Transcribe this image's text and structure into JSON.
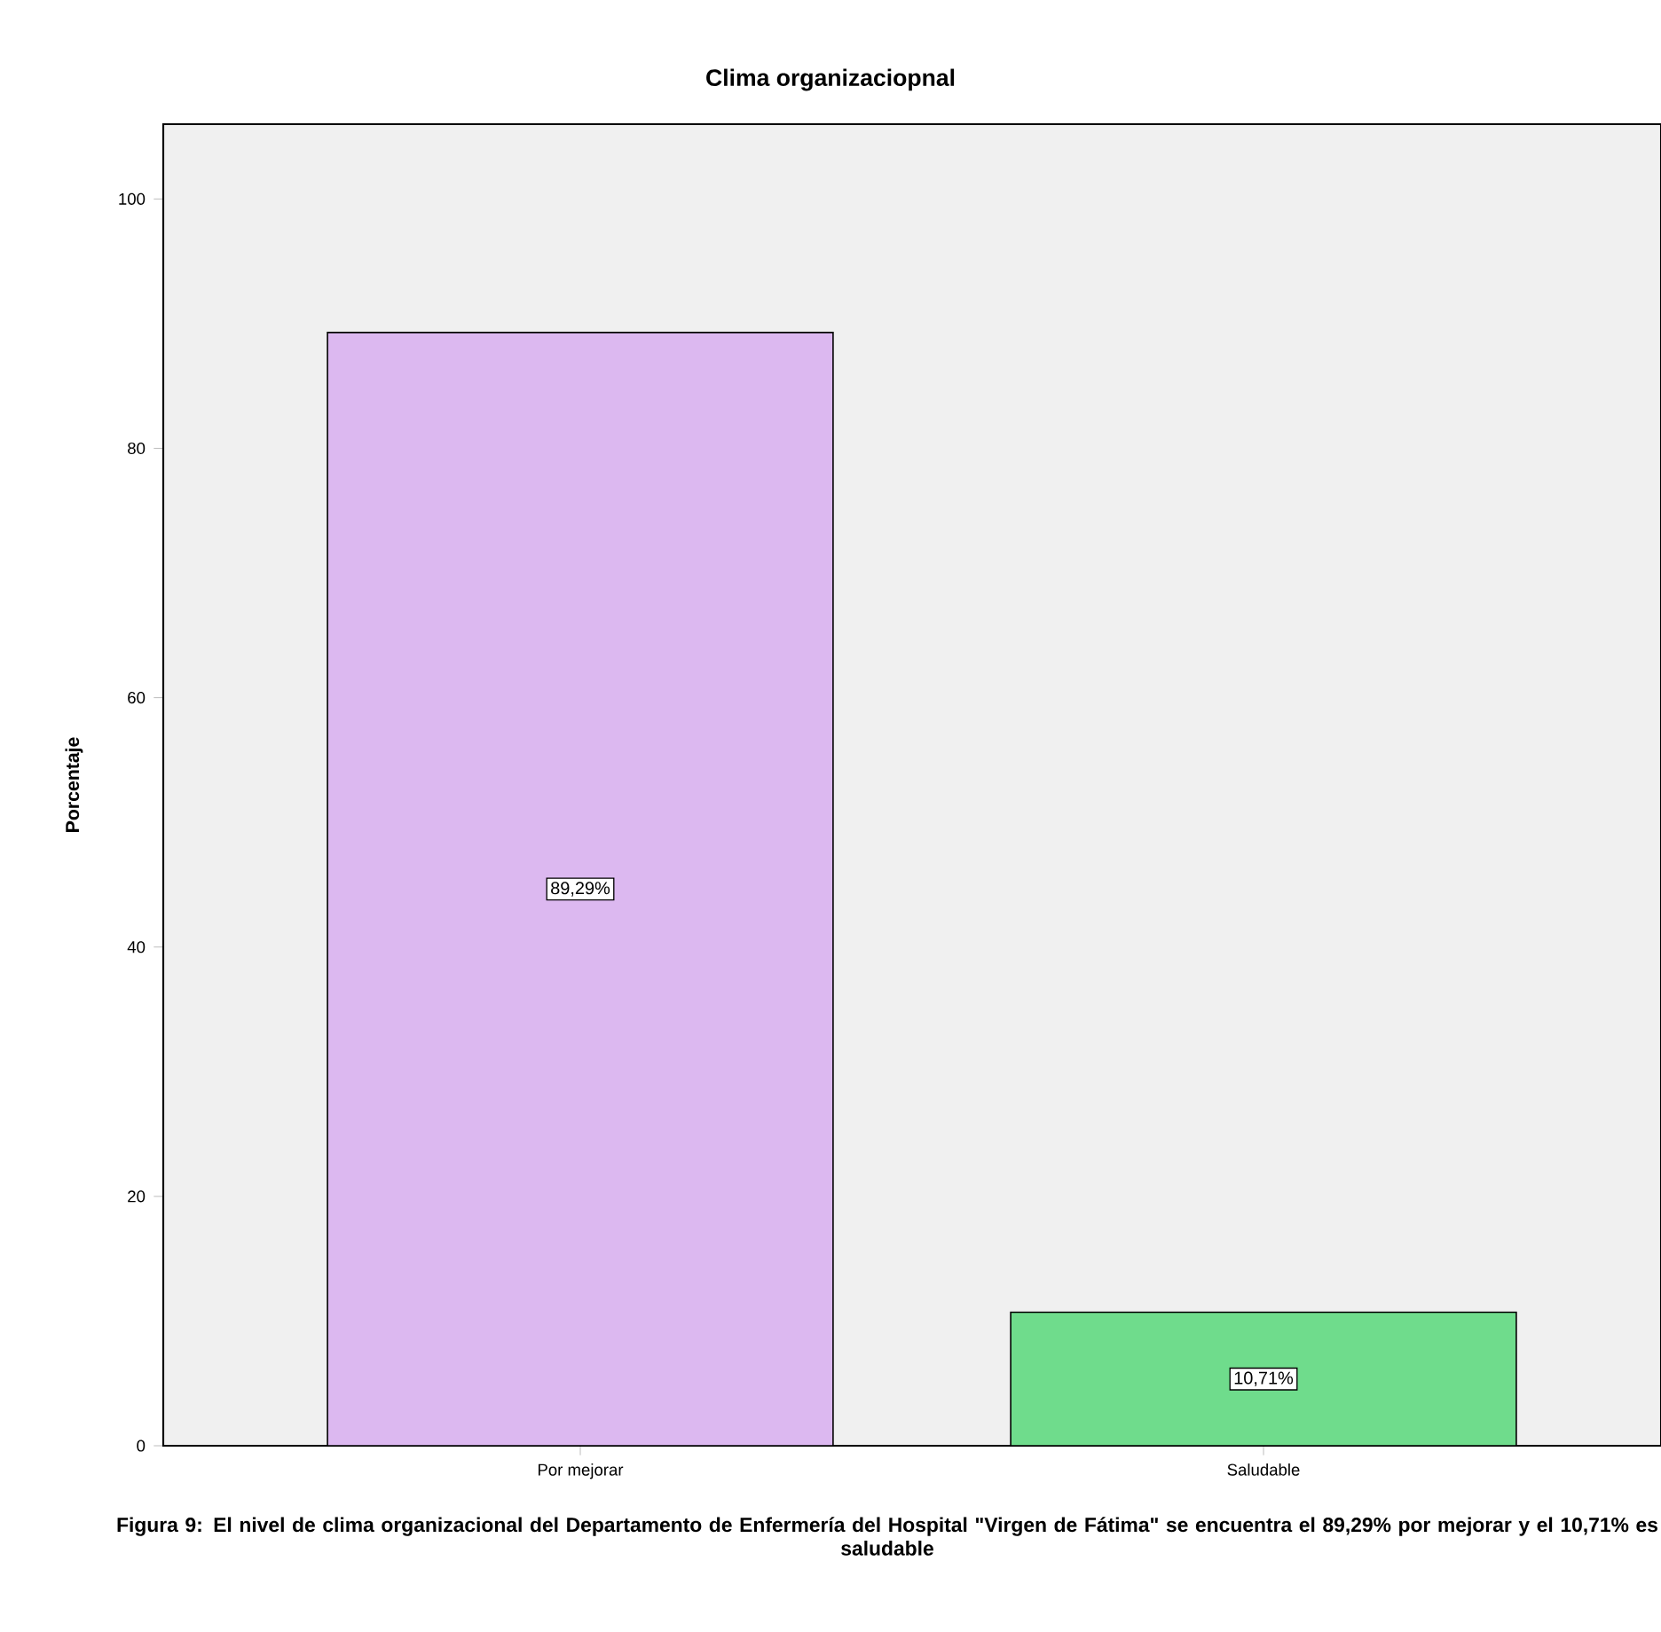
{
  "chart_data": {
    "type": "bar",
    "title": "Clima organizaciopnal",
    "ylabel": "Porcentaje",
    "categories": [
      "Por mejorar",
      "Saludable"
    ],
    "values": [
      89.29,
      10.71
    ],
    "colors": [
      "#dcb8f0",
      "#6fdc8c"
    ],
    "value_labels": [
      "89,29%",
      "10,71%"
    ],
    "ylim": [
      0,
      106
    ],
    "yticks": [
      0,
      20,
      40,
      60,
      80,
      100
    ],
    "grid": false,
    "annotations": [
      "Figura 9: El nivel de clima organizacional del Departamento de Enfermería del Hospital \"Virgen de Fátima\"  se encuentra el 89,29% por mejorar y el 10,71% es saludable"
    ]
  }
}
